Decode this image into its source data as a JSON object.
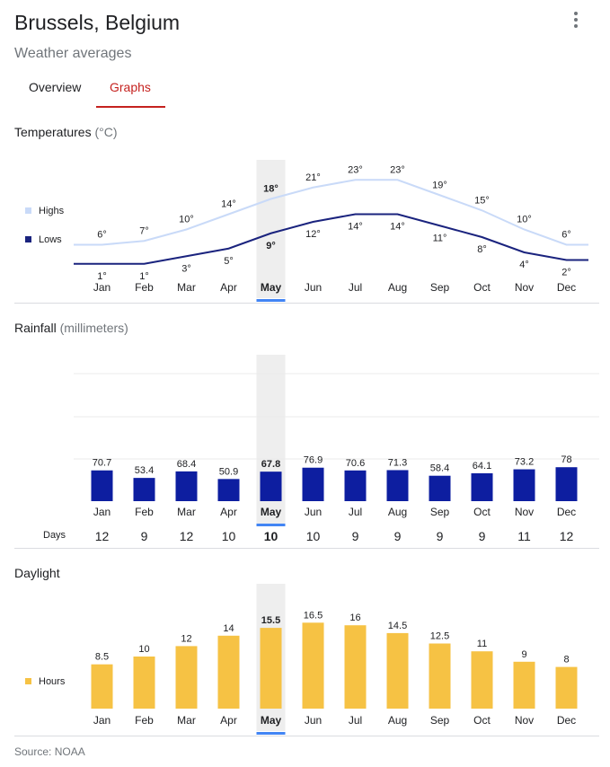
{
  "header": {
    "title": "Brussels, Belgium",
    "subtitle": "Weather averages",
    "more_icon": "more-vert-icon"
  },
  "tabs": [
    {
      "label": "Overview",
      "selected": false
    },
    {
      "label": "Graphs",
      "selected": true
    }
  ],
  "months": [
    "Jan",
    "Feb",
    "Mar",
    "Apr",
    "May",
    "Jun",
    "Jul",
    "Aug",
    "Sep",
    "Oct",
    "Nov",
    "Dec"
  ],
  "highlighted_month": "May",
  "colors": {
    "highs": "#c9daf8",
    "lows": "#1a237e",
    "rain": "#0d1ea0",
    "daylight": "#f6c244",
    "accent": "#c5221f",
    "highlight_bar": "#4285f4",
    "highlight_bg": "#eeeeee"
  },
  "temperatures": {
    "title": "Temperatures",
    "unit": "(°C)",
    "legend_highs": "Highs",
    "legend_lows": "Lows",
    "chart_data": {
      "type": "line",
      "categories": [
        "Jan",
        "Feb",
        "Mar",
        "Apr",
        "May",
        "Jun",
        "Jul",
        "Aug",
        "Sep",
        "Oct",
        "Nov",
        "Dec"
      ],
      "series": [
        {
          "name": "Highs",
          "values": [
            6,
            7,
            10,
            14,
            18,
            21,
            23,
            23,
            19,
            15,
            10,
            6
          ]
        },
        {
          "name": "Lows",
          "values": [
            1,
            1,
            3,
            5,
            9,
            12,
            14,
            14,
            11,
            8,
            4,
            2
          ]
        }
      ],
      "value_suffix": "°"
    }
  },
  "rainfall": {
    "title": "Rainfall",
    "unit": "(millimeters)",
    "days_label": "Days",
    "chart_data": {
      "type": "bar",
      "categories": [
        "Jan",
        "Feb",
        "Mar",
        "Apr",
        "May",
        "Jun",
        "Jul",
        "Aug",
        "Sep",
        "Oct",
        "Nov",
        "Dec"
      ],
      "values": [
        70.7,
        53.4,
        68.4,
        50.9,
        67.8,
        76.9,
        70.6,
        71.3,
        58.4,
        64.1,
        73.2,
        78
      ],
      "ylim": [
        0,
        300
      ],
      "grid": true
    },
    "days": [
      12,
      9,
      12,
      10,
      10,
      10,
      9,
      9,
      9,
      9,
      11,
      12
    ]
  },
  "daylight": {
    "title": "Daylight",
    "legend_hours": "Hours",
    "chart_data": {
      "type": "bar",
      "categories": [
        "Jan",
        "Feb",
        "Mar",
        "Apr",
        "May",
        "Jun",
        "Jul",
        "Aug",
        "Sep",
        "Oct",
        "Nov",
        "Dec"
      ],
      "values": [
        8.5,
        10,
        12,
        14,
        15.5,
        16.5,
        16,
        14.5,
        12.5,
        11,
        9,
        8
      ]
    }
  },
  "footer": {
    "source": "Source: NOAA"
  }
}
